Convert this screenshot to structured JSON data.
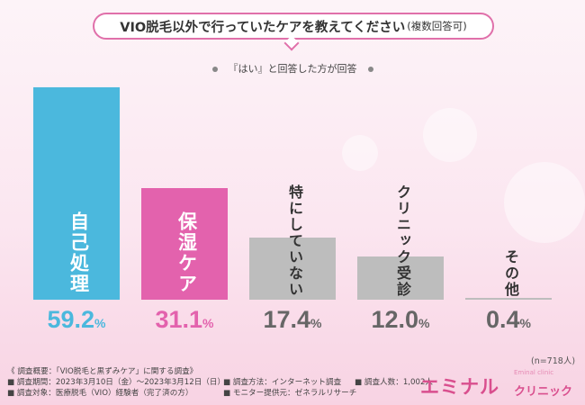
{
  "title": {
    "main": "VIO脱毛以外で行っていたケアを教えてください",
    "sub": "(複数回答可)"
  },
  "legend_text": "『はい』と回答した方が回答",
  "n_note": "(n=718人)",
  "colors": {
    "blue": "#4bb8dd",
    "pink": "#e362ad",
    "gray": "#bdbdbd",
    "accent": "#e070aa"
  },
  "chart_data": {
    "type": "bar",
    "categories": [
      "自己処理",
      "保湿ケア",
      "特にしていない",
      "クリニック受診",
      "その他"
    ],
    "values": [
      59.2,
      31.1,
      17.4,
      12.0,
      0.4
    ],
    "value_labels": [
      {
        "big": "59.2",
        "pct": "%"
      },
      {
        "big": "31.1",
        "pct": "%"
      },
      {
        "big": "17.4",
        "pct": "%"
      },
      {
        "big": "12.0",
        "pct": "%"
      },
      {
        "big": "0.4",
        "pct": "%"
      }
    ],
    "bar_colors": [
      "#4bb8dd",
      "#e362ad",
      "#bdbdbd",
      "#bdbdbd",
      "#bdbdbd"
    ],
    "label_colors": [
      "#ffffff",
      "#ffffff",
      "#333333",
      "#333333",
      "#333333"
    ],
    "value_colors": [
      "#4bb8dd",
      "#e362ad",
      "#666666",
      "#666666",
      "#666666"
    ],
    "ylim": [
      0,
      59.2
    ]
  },
  "footer": {
    "line1": "《 調査概要：「VIO脱毛と黒ずみケア」に関する調査》",
    "period": "■ 調査期間：2023年3月10日（金）～2023年3月12日（日）",
    "method": "■ 調査方法：インターネット調査",
    "count": "■ 調査人数：1,002人",
    "target": "■ 調査対象：医療脱毛（VIO）経験者（完了済の方）",
    "provider": "■ モニター提供元：ゼネラルリサーチ"
  },
  "logo": {
    "main": "エミナル",
    "sub": "クリニック",
    "small": "Eminal clinic"
  }
}
